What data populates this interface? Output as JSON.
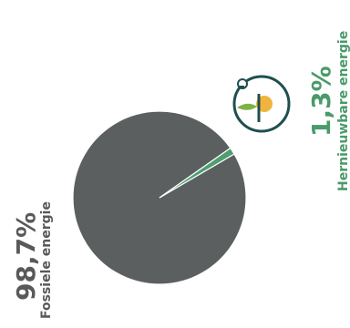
{
  "chart_data": {
    "type": "pie",
    "slices": [
      {
        "label": "Fossiele energie",
        "value": 98.7,
        "display": "98,7%",
        "color": "#5b5f60"
      },
      {
        "label": "Hernieuwbare energie",
        "value": 1.3,
        "display": "1,3%",
        "color": "#4f9e6f"
      }
    ]
  },
  "colors": {
    "fossil_text": "#595959",
    "renewable_text": "#4a9a6a",
    "icon_ring": "#1f4f4e",
    "icon_sun": "#f0b43c",
    "icon_leaf": "#7cb342",
    "icon_stem": "#1f4f4e"
  },
  "icon": "renewable-energy-icon"
}
